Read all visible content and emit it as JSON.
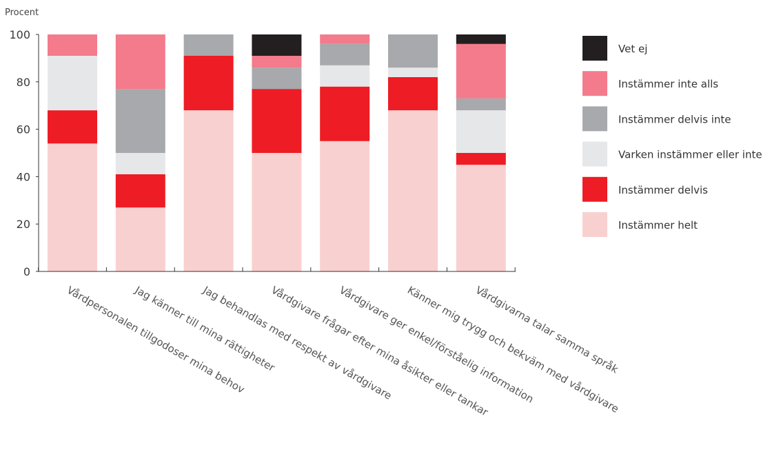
{
  "chart_data": {
    "type": "bar",
    "stacked": true,
    "ylabel": "Procent",
    "ylim": [
      0,
      100
    ],
    "yticks": [
      "0",
      "20",
      "40",
      "60",
      "80",
      "100"
    ],
    "grid": false,
    "legend_position": "right",
    "categories": [
      "Vårdpersonalen tillgodoser mina behov",
      "Jag känner till mina rättigheter",
      "Jag behandlas med respekt av vårdgivare",
      "Vårdgivare frågar efter mina åsikter eller tankar",
      "Vårdgivare ger enkel/förståelig information",
      "Känner mig trygg och bekväm med vårdgivare",
      "Vårdgivarna talar samma språk"
    ],
    "series": [
      {
        "name": "Instämmer helt",
        "color": "#f9d0d0",
        "values": [
          54,
          27,
          68,
          50,
          55,
          68,
          45
        ]
      },
      {
        "name": "Instämmer delvis",
        "color": "#ee1c24",
        "values": [
          14,
          14,
          23,
          27,
          23,
          14,
          5
        ]
      },
      {
        "name": "Varken instämmer eller inte",
        "color": "#e6e7e9",
        "values": [
          23,
          9,
          0,
          0,
          9,
          4,
          18
        ]
      },
      {
        "name": "Instämmer delvis inte",
        "color": "#a7a9ac",
        "values": [
          0,
          27,
          9,
          9,
          9,
          14,
          5
        ]
      },
      {
        "name": "Instämmer inte alls",
        "color": "#f47b8b",
        "values": [
          9,
          23,
          0,
          5,
          4,
          0,
          23
        ]
      },
      {
        "name": "Vet ej",
        "color": "#231f20",
        "values": [
          0,
          0,
          0,
          9,
          0,
          0,
          4
        ]
      }
    ]
  }
}
